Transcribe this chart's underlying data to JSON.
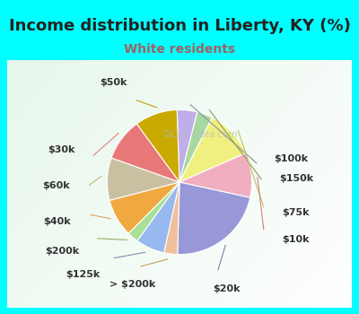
{
  "title": "Income distribution in Liberty, KY (%)",
  "subtitle": "White residents",
  "bg_cyan": "#00FFFF",
  "bg_inner": "#e8f5ee",
  "labels": [
    "$100k",
    "$150k",
    "$75k",
    "$10k",
    "$20k",
    "> $200k",
    "$125k",
    "$200k",
    "$40k",
    "$60k",
    "$30k",
    "$50k"
  ],
  "sizes": [
    4.5,
    3.5,
    11.0,
    10.0,
    22.0,
    3.0,
    6.5,
    2.5,
    8.5,
    9.5,
    9.5,
    9.5
  ],
  "colors": [
    "#c0aee8",
    "#a8d8a0",
    "#f0f080",
    "#f0aec0",
    "#9898d8",
    "#f0c098",
    "#98b8f0",
    "#a8e098",
    "#f0a840",
    "#c8c0a0",
    "#e87878",
    "#c8aa00"
  ],
  "wedge_linewidth": 0.8,
  "wedge_edgecolor": "#ffffff",
  "label_fontsize": 8,
  "title_fontsize": 13,
  "subtitle_fontsize": 10,
  "subtitle_color": "#a06060",
  "watermark": "©City-Data.com",
  "watermark_color": "#b0b8c0"
}
